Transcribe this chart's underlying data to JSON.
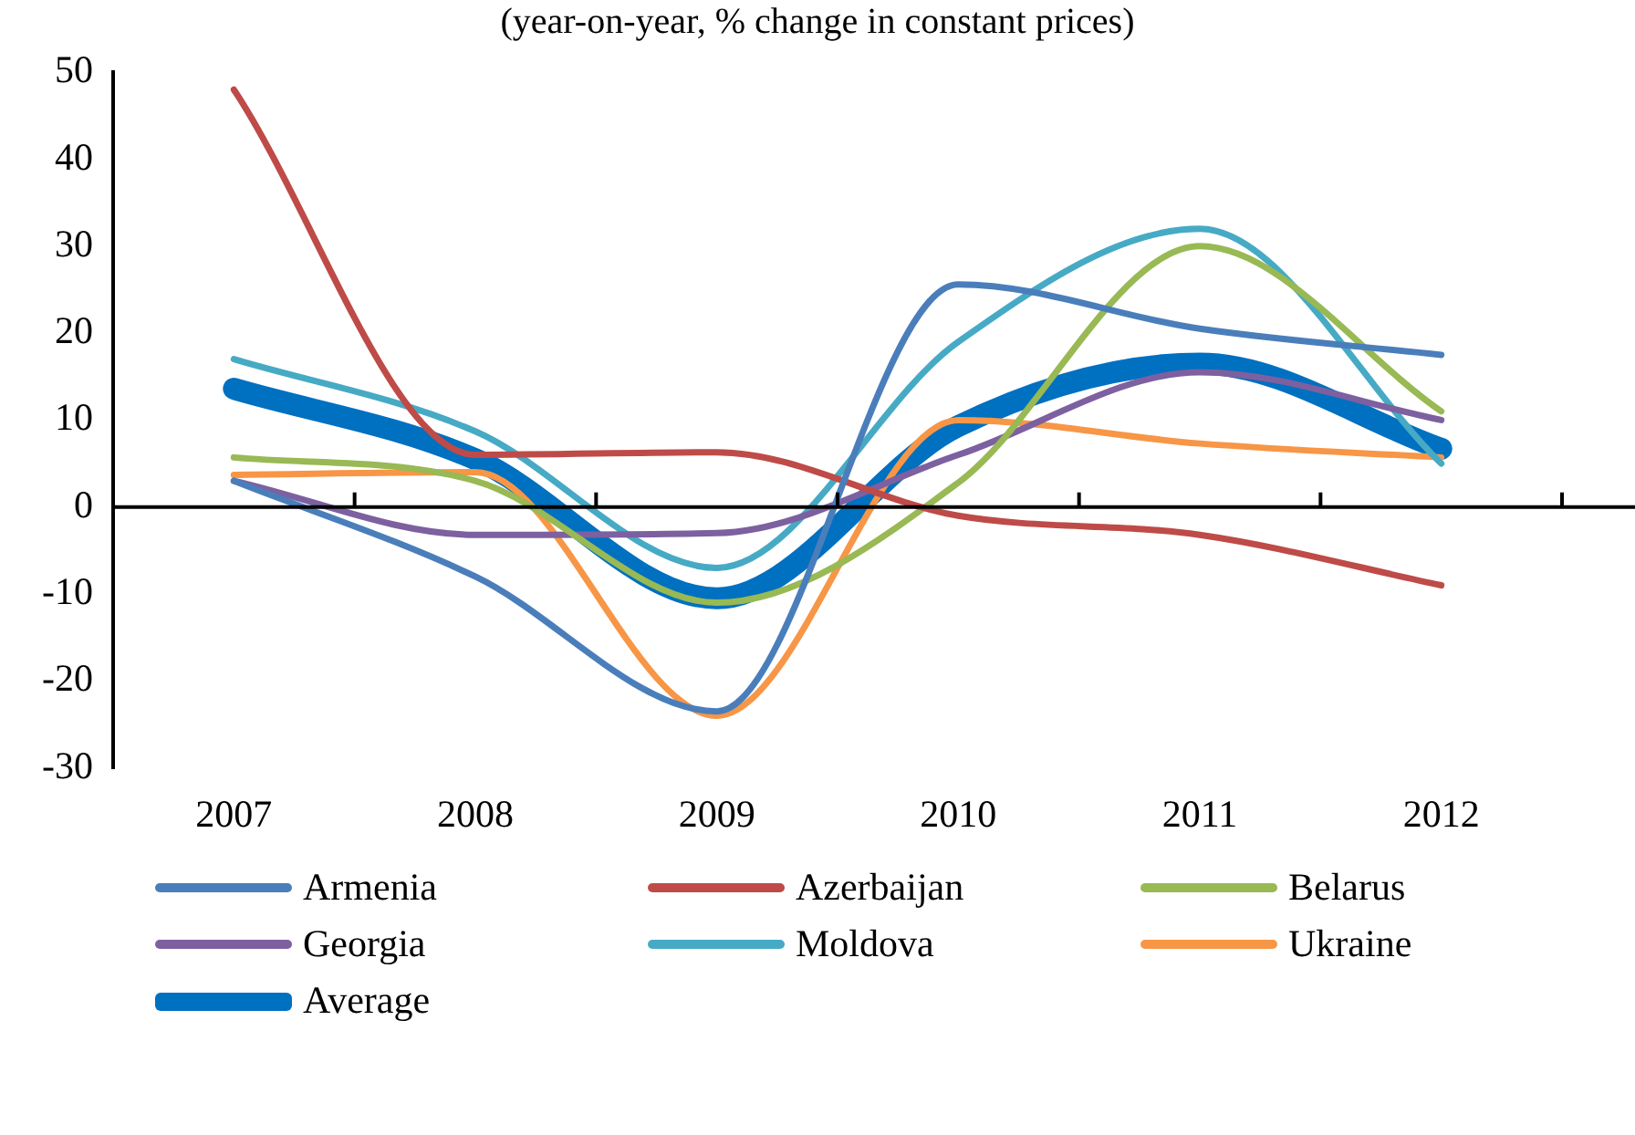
{
  "chart_data": {
    "type": "line",
    "title": "(year-on-year, % change in constant prices)",
    "categories": [
      "2007",
      "2008",
      "2009",
      "2010",
      "2011",
      "2012"
    ],
    "ylim": [
      -30,
      50
    ],
    "yticks": [
      -30,
      -20,
      -10,
      0,
      10,
      20,
      30,
      40,
      50
    ],
    "legend": "bottom",
    "marker": "none",
    "line_style": "solid",
    "series": [
      {
        "name": "Armenia",
        "color": "#4a7ebb",
        "values": [
          3,
          -8,
          -23.5,
          25.6,
          20.5,
          17.5
        ]
      },
      {
        "name": "Azerbaijan",
        "color": "#be4b48",
        "values": [
          48,
          6,
          6.3,
          -1,
          -3.2,
          -9
        ]
      },
      {
        "name": "Belarus",
        "color": "#98b954",
        "values": [
          5.7,
          3,
          -11,
          2.8,
          30,
          11
        ]
      },
      {
        "name": "Georgia",
        "color": "#7d60a0",
        "values": [
          3,
          -3.2,
          -3,
          6,
          15.5,
          10
        ]
      },
      {
        "name": "Moldova",
        "color": "#46aac5",
        "values": [
          17,
          8.7,
          -7,
          19,
          32,
          5
        ]
      },
      {
        "name": "Ukraine",
        "color": "#f79646",
        "values": [
          3.7,
          4,
          -24,
          10,
          7.3,
          5.7
        ]
      },
      {
        "name": "Average",
        "color": "#0070c0",
        "values": [
          13.6,
          5.5,
          -10.5,
          9.3,
          16.5,
          6.7
        ]
      }
    ]
  }
}
